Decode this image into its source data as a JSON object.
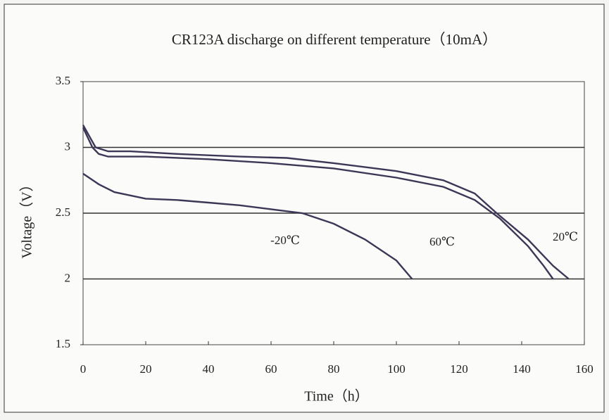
{
  "chart_data": {
    "type": "line",
    "title": "CR123A discharge on different temperature（10mA）",
    "xlabel": "Time（h）",
    "ylabel": "Voltage（V）",
    "xlim": [
      0,
      160
    ],
    "xticks": [
      0,
      20,
      40,
      60,
      80,
      100,
      120,
      140,
      160
    ],
    "ylim": [
      1.5,
      3.5
    ],
    "yticks": [
      3.5,
      3,
      2.5,
      2,
      1.5
    ],
    "grid": true,
    "series": [
      {
        "name": "-20℃",
        "color": "#3d3656",
        "x": [
          0,
          5,
          10,
          20,
          30,
          40,
          50,
          60,
          70,
          80,
          90,
          100,
          105
        ],
        "values": [
          2.8,
          2.72,
          2.66,
          2.61,
          2.6,
          2.58,
          2.56,
          2.53,
          2.5,
          2.42,
          2.3,
          2.14,
          2.0
        ]
      },
      {
        "name": "60℃",
        "color": "#3d3656",
        "x": [
          0,
          3,
          5,
          8,
          20,
          40,
          60,
          80,
          100,
          115,
          125,
          133,
          142,
          147,
          150
        ],
        "values": [
          3.15,
          3.0,
          2.95,
          2.93,
          2.93,
          2.91,
          2.88,
          2.84,
          2.77,
          2.7,
          2.6,
          2.46,
          2.25,
          2.1,
          2.0
        ]
      },
      {
        "name": "20℃",
        "color": "#3d3656",
        "x": [
          0,
          4,
          8,
          15,
          30,
          50,
          65,
          80,
          100,
          115,
          125,
          132,
          142,
          150,
          155
        ],
        "values": [
          3.17,
          3.0,
          2.97,
          2.97,
          2.95,
          2.93,
          2.92,
          2.88,
          2.82,
          2.75,
          2.65,
          2.5,
          2.3,
          2.1,
          2.0
        ]
      }
    ]
  }
}
